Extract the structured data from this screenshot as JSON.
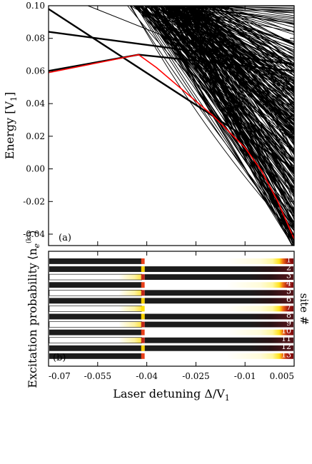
{
  "chart_data": [
    {
      "type": "line",
      "panel_label": "(a)",
      "ylabel": "Energy [V",
      "ylabel_sub": "1",
      "ylabel_close": "]",
      "xlim": [
        -0.07,
        0.005
      ],
      "ylim": [
        -0.047,
        0.1
      ],
      "y_ticks": [
        "0.10",
        "0.08",
        "0.06",
        "0.04",
        "0.02",
        "0.00",
        "-0.02",
        "-0.04"
      ],
      "y_tick_values": [
        0.1,
        0.08,
        0.06,
        0.04,
        0.02,
        0.0,
        -0.02,
        -0.04
      ],
      "x_tick_values": [
        -0.055,
        -0.04,
        -0.025,
        -0.01
      ],
      "ground_state": {
        "color": "#ff0000",
        "x": [
          -0.07,
          -0.0425,
          -0.037,
          -0.03,
          -0.02,
          -0.01,
          -0.005,
          0.0,
          0.005
        ],
        "y": [
          0.059,
          0.07,
          0.062,
          0.05,
          0.033,
          0.013,
          -0.001,
          -0.02,
          -0.043
        ]
      },
      "excited_states_color": "#000000",
      "highlighted_lines": [
        {
          "x": [
            -0.07,
            0.005
          ],
          "y": [
            0.084,
            0.064
          ]
        },
        {
          "x": [
            -0.07,
            -0.0425,
            0.005
          ],
          "y": [
            0.06,
            0.07,
            0.06
          ]
        },
        {
          "x": [
            -0.07,
            0.005
          ],
          "y": [
            0.098,
            0.0
          ]
        },
        {
          "x": [
            -0.058,
            -0.033
          ],
          "y": [
            0.1,
            0.08
          ]
        }
      ]
    },
    {
      "type": "heatmap",
      "panel_label": "(b)",
      "ylabel": "Excitation probability",
      "ylabel_expr": "⟨n",
      "xlabel": "Laser detuning Δ/V",
      "xlabel_sub": "1",
      "right_label": "site #",
      "xlim": [
        -0.07,
        0.005
      ],
      "x_ticks": [
        "-0.07",
        "-0.055",
        "-0.04",
        "-0.025",
        "-0.01",
        "0.005"
      ],
      "x_tick_values": [
        -0.07,
        -0.055,
        -0.04,
        -0.025,
        -0.01,
        0.005
      ],
      "transition": -0.0415,
      "rows": [
        {
          "site": "1",
          "left": "low",
          "right": "high"
        },
        {
          "site": "2",
          "left": "low",
          "right": "low"
        },
        {
          "site": "3",
          "left": "high",
          "right": "low"
        },
        {
          "site": "4",
          "left": "low",
          "right": "high"
        },
        {
          "site": "5",
          "left": "high",
          "right": "low"
        },
        {
          "site": "6",
          "left": "low",
          "right": "low"
        },
        {
          "site": "7",
          "left": "high",
          "right": "high"
        },
        {
          "site": "8",
          "left": "low",
          "right": "low"
        },
        {
          "site": "9",
          "left": "high",
          "right": "low"
        },
        {
          "site": "10",
          "left": "low",
          "right": "high"
        },
        {
          "site": "11",
          "left": "high",
          "right": "low"
        },
        {
          "site": "12",
          "left": "low",
          "right": "low"
        },
        {
          "site": "13",
          "left": "low",
          "right": "high"
        }
      ]
    }
  ]
}
